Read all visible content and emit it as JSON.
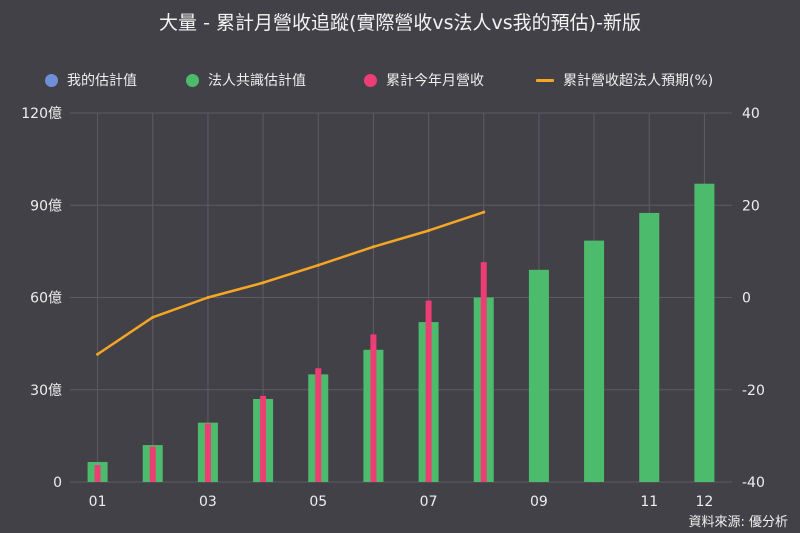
{
  "title": "大量 - 累計月營收追蹤(實際營收vs法人vs我的預估)-新版",
  "source": "資料來源: 優分析",
  "legend": [
    {
      "label": "我的估計值",
      "color": "#6f8fd6",
      "shape": "dot"
    },
    {
      "label": "法人共識估計值",
      "color": "#4cbc6c",
      "shape": "dot"
    },
    {
      "label": "累計今年月營收",
      "color": "#ec3d75",
      "shape": "dot"
    },
    {
      "label": "累計營收超法人預期(%)",
      "color": "#f5a623",
      "shape": "line"
    }
  ],
  "chart_data": {
    "type": "bar",
    "categories": [
      "01",
      "02",
      "03",
      "04",
      "05",
      "06",
      "07",
      "08",
      "09",
      "10",
      "11",
      "12"
    ],
    "x_tick_labels": [
      "01",
      "",
      "03",
      "",
      "05",
      "",
      "07",
      "",
      "09",
      "",
      "11",
      "12"
    ],
    "series": [
      {
        "name": "法人共識估計值",
        "type": "bar",
        "axis": "left",
        "color": "#4cbc6c",
        "values": [
          6.5,
          12,
          19.3,
          27,
          35,
          43,
          52,
          60,
          69,
          78.5,
          87.5,
          97
        ]
      },
      {
        "name": "累計今年月營收",
        "type": "bar",
        "axis": "left",
        "color": "#ec3d75",
        "values": [
          5.5,
          11.5,
          19,
          28,
          37,
          48,
          59,
          71.5,
          null,
          null,
          null,
          null
        ]
      },
      {
        "name": "累計營收超法人預期(%)",
        "type": "line",
        "axis": "right",
        "color": "#f5a623",
        "values": [
          -12.3,
          -4.3,
          0,
          3.2,
          7,
          11,
          14.5,
          18.5,
          null,
          null,
          null,
          null
        ]
      }
    ],
    "y_left": {
      "min": 0,
      "max": 120,
      "ticks": [
        0,
        30,
        60,
        90,
        120
      ],
      "tick_labels": [
        "0",
        "30億",
        "60億",
        "90億",
        "120億"
      ]
    },
    "y_right": {
      "min": -40,
      "max": 40,
      "ticks": [
        -40,
        -20,
        0,
        20,
        40
      ],
      "tick_labels": [
        "-40",
        "-20",
        "0",
        "20",
        "40"
      ]
    },
    "grid": true,
    "legend_position": "top"
  }
}
